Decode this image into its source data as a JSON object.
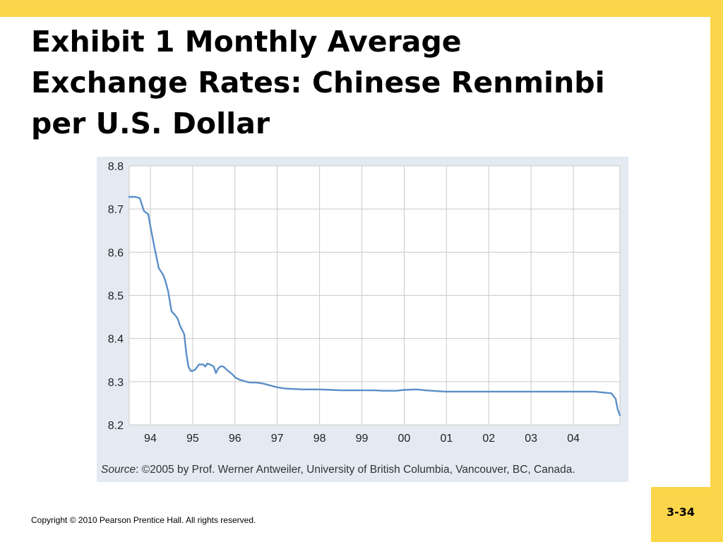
{
  "slide": {
    "title_lines": [
      "Exhibit 1  Monthly Average",
      "Exchange Rates: Chinese Renminbi",
      "per U.S. Dollar"
    ],
    "copyright": "Copyright © 2010 Pearson Prentice Hall. All rights reserved.",
    "page_number": "3-34",
    "accent_color": "#fcd64a"
  },
  "chart_data": {
    "type": "line",
    "title": "",
    "xlabel": "",
    "ylabel": "",
    "x_ticks": [
      "94",
      "95",
      "96",
      "97",
      "98",
      "99",
      "00",
      "01",
      "02",
      "03",
      "04"
    ],
    "y_ticks": [
      "8.8",
      "8.7",
      "8.6",
      "8.5",
      "8.4",
      "8.3",
      "8.2"
    ],
    "ylim": [
      8.2,
      8.8
    ],
    "xlim": [
      1993.5,
      2005.1
    ],
    "grid": true,
    "line_color": "#5b8fc7",
    "background_color": "#e3eaf2",
    "plot_background_color": "#ffffff",
    "source_label": "Source",
    "source_text": ": ©2005 by Prof. Werner Antweiler, University of British Columbia, Vancouver, BC, Canada.",
    "series": [
      {
        "x": [
          1993.5,
          1993.65,
          1993.75,
          1993.85,
          1993.95,
          1994.0,
          1994.1,
          1994.2,
          1994.3,
          1994.35,
          1994.42,
          1994.5,
          1994.58,
          1994.65,
          1994.7,
          1994.8,
          1994.85,
          1994.9,
          1994.95,
          1995.0,
          1995.05,
          1995.1,
          1995.15,
          1995.2,
          1995.25,
          1995.3,
          1995.35,
          1995.45,
          1995.5,
          1995.55,
          1995.6,
          1995.65,
          1995.7,
          1995.75,
          1995.8,
          1995.9,
          1995.95,
          1996.0,
          1996.1,
          1996.2,
          1996.35,
          1996.5,
          1996.65,
          1996.8,
          1997.0,
          1997.2,
          1997.4,
          1997.6,
          1997.8,
          1998.0,
          1998.3,
          1998.5,
          1998.8,
          1999.0,
          1999.3,
          1999.5,
          1999.8,
          2000.0,
          2000.3,
          2000.5,
          2000.8,
          2001.0,
          2001.3,
          2001.6,
          2002.0,
          2002.5,
          2003.0,
          2003.5,
          2004.0,
          2004.5,
          2004.9,
          2005.0,
          2005.05,
          2005.1
        ],
        "y": [
          8.728,
          8.728,
          8.725,
          8.695,
          8.688,
          8.66,
          8.61,
          8.563,
          8.548,
          8.535,
          8.51,
          8.463,
          8.455,
          8.445,
          8.43,
          8.41,
          8.365,
          8.335,
          8.325,
          8.325,
          8.327,
          8.333,
          8.34,
          8.34,
          8.34,
          8.335,
          8.342,
          8.338,
          8.335,
          8.32,
          8.33,
          8.335,
          8.336,
          8.333,
          8.328,
          8.32,
          8.316,
          8.31,
          8.305,
          8.302,
          8.298,
          8.298,
          8.296,
          8.292,
          8.287,
          8.284,
          8.283,
          8.282,
          8.282,
          8.282,
          8.281,
          8.28,
          8.28,
          8.28,
          8.28,
          8.279,
          8.279,
          8.281,
          8.282,
          8.28,
          8.278,
          8.277,
          8.277,
          8.277,
          8.277,
          8.277,
          8.277,
          8.277,
          8.277,
          8.277,
          8.273,
          8.26,
          8.235,
          8.222
        ]
      }
    ]
  }
}
